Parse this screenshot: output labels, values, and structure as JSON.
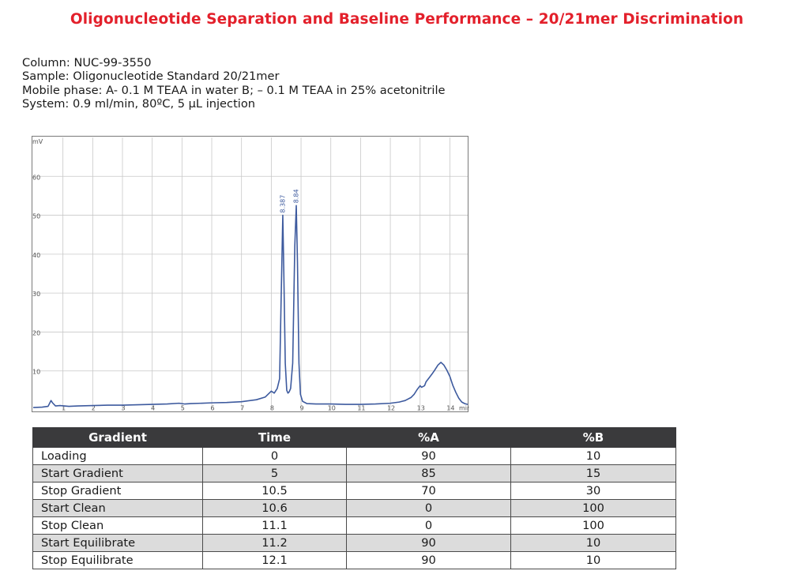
{
  "title": "Oligonucleotide Separation and Baseline Performance – 20/21mer Discrimination",
  "info": {
    "column": "Column: NUC-99-3550",
    "sample": "Sample: Oligonucleotide Standard 20/21mer",
    "mobile_phase": "Mobile phase: A- 0.1 M TEAA in water B; – 0.1 M TEAA in 25% acetonitrile",
    "system": "System: 0.9 ml/min, 80ºC, 5 µL injection"
  },
  "chart_data": {
    "type": "line",
    "title": "",
    "xlabel": "min",
    "ylabel": "mV",
    "xlim": [
      0,
      14.6
    ],
    "ylim": [
      0,
      70
    ],
    "x_ticks": [
      "1",
      "2",
      "3",
      "4",
      "5",
      "6",
      "7",
      "8",
      "9",
      "10",
      "11",
      "12",
      "13",
      "14"
    ],
    "y_ticks": [
      "10",
      "20",
      "30",
      "40",
      "50",
      "60"
    ],
    "grid": true,
    "line_color": "#3d5a9e",
    "series": [
      {
        "x": [
          0,
          0.3,
          0.5,
          0.6,
          0.65,
          0.75,
          0.9,
          1.2,
          1.5,
          2,
          2.5,
          3,
          3.5,
          4,
          4.5,
          4.9,
          5.1,
          5.3,
          6,
          6.5,
          7,
          7.5,
          7.8,
          8.0,
          8.1,
          8.2,
          8.28,
          8.33,
          8.387,
          8.42,
          8.47,
          8.52,
          8.56,
          8.6,
          8.65,
          8.72,
          8.79,
          8.84,
          8.88,
          8.93,
          8.98,
          9.05,
          9.2,
          9.5,
          10,
          10.5,
          11,
          11.5,
          12,
          12.3,
          12.5,
          12.7,
          12.8,
          12.9,
          13.0,
          13.05,
          13.15,
          13.2,
          13.3,
          13.4,
          13.5,
          13.6,
          13.7,
          13.8,
          13.9,
          14.0,
          14.1,
          14.2,
          14.3,
          14.4,
          14.5,
          14.6
        ],
        "y": [
          0.6,
          0.7,
          0.9,
          2.4,
          1.8,
          1.0,
          1.1,
          0.9,
          1.0,
          1.1,
          1.2,
          1.2,
          1.3,
          1.4,
          1.5,
          1.7,
          1.5,
          1.6,
          1.8,
          1.9,
          2.1,
          2.6,
          3.3,
          4.8,
          4.3,
          5.5,
          8.0,
          28.0,
          50.0,
          36.0,
          12.0,
          5.0,
          4.3,
          4.6,
          5.5,
          12.0,
          42.0,
          52.5,
          38.0,
          12.0,
          4.0,
          2.2,
          1.6,
          1.5,
          1.5,
          1.4,
          1.4,
          1.5,
          1.7,
          2.0,
          2.4,
          3.2,
          4.0,
          5.2,
          6.2,
          5.8,
          6.2,
          7.2,
          8.2,
          9.2,
          10.3,
          11.5,
          12.2,
          11.5,
          10.2,
          8.6,
          6.3,
          4.5,
          3.0,
          2.0,
          1.6,
          1.4
        ]
      }
    ],
    "peak_labels": [
      {
        "x": 8.387,
        "y": 50.0,
        "text": "8.387"
      },
      {
        "x": 8.84,
        "y": 52.5,
        "text": "8.84"
      }
    ]
  },
  "table": {
    "headers": [
      "Gradient",
      "Time",
      "%A",
      "%B"
    ],
    "rows": [
      [
        "Loading",
        "0",
        "90",
        "10"
      ],
      [
        "Start Gradient",
        "5",
        "85",
        "15"
      ],
      [
        "Stop Gradient",
        "10.5",
        "70",
        "30"
      ],
      [
        "Start Clean",
        "10.6",
        "0",
        "100"
      ],
      [
        "Stop Clean",
        "11.1",
        "0",
        "100"
      ],
      [
        "Start Equilibrate",
        "11.2",
        "90",
        "10"
      ],
      [
        "Stop Equilibrate",
        "12.1",
        "90",
        "10"
      ]
    ]
  }
}
